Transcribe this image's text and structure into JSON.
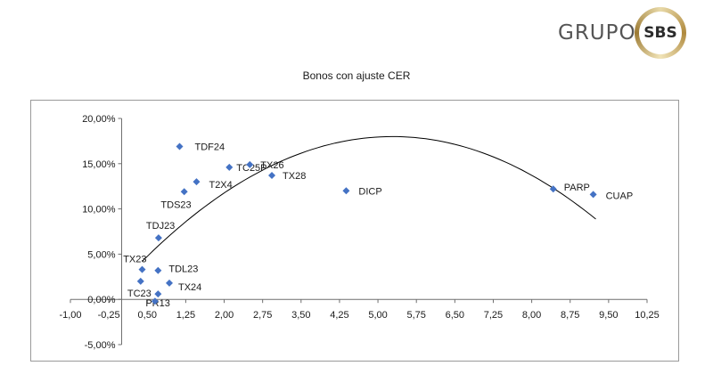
{
  "brand": {
    "text": "GRUPO",
    "badge": "SBS"
  },
  "chart_data": {
    "type": "scatter",
    "title": "Bonos con ajuste CER",
    "xlabel": "",
    "ylabel": "",
    "xlim": [
      -1.0,
      10.25
    ],
    "ylim": [
      -0.05,
      0.2
    ],
    "x_ticks": [
      "-1,00",
      "-0,25",
      "0,50",
      "1,25",
      "2,00",
      "2,75",
      "3,50",
      "4,25",
      "5,00",
      "5,75",
      "6,50",
      "7,25",
      "8,00",
      "8,75",
      "9,50",
      "10,25"
    ],
    "y_ticks": [
      "-5,00%",
      "0,00%",
      "5,00%",
      "10,00%",
      "15,00%",
      "20,00%"
    ],
    "grid": false,
    "legend": "none",
    "marker_color": "#4472c4",
    "trend_color": "#000000",
    "points": [
      {
        "label": "TDF24",
        "x": 1.13,
        "y": 0.169
      },
      {
        "label": "TC25P",
        "x": 2.1,
        "y": 0.146
      },
      {
        "label": "TX26",
        "x": 2.5,
        "y": 0.149
      },
      {
        "label": "TX28",
        "x": 2.93,
        "y": 0.137
      },
      {
        "label": "T2X4",
        "x": 1.46,
        "y": 0.13
      },
      {
        "label": "TDS23",
        "x": 1.22,
        "y": 0.119
      },
      {
        "label": "DICP",
        "x": 4.38,
        "y": 0.12
      },
      {
        "label": "PARP",
        "x": 8.42,
        "y": 0.122
      },
      {
        "label": "CUAP",
        "x": 9.2,
        "y": 0.116
      },
      {
        "label": "TDJ23",
        "x": 0.72,
        "y": 0.068
      },
      {
        "label": "TX23",
        "x": 0.4,
        "y": 0.033
      },
      {
        "label": "TDL23",
        "x": 0.71,
        "y": 0.032
      },
      {
        "label": "TC23",
        "x": 0.37,
        "y": 0.02
      },
      {
        "label": "TX24",
        "x": 0.93,
        "y": 0.018
      },
      {
        "label": "PR13",
        "x": 0.71,
        "y": 0.006
      },
      {
        "label": "",
        "x": 0.65,
        "y": -0.002
      }
    ],
    "trendline": {
      "type": "polynomial",
      "x_range": [
        0.4,
        9.25
      ],
      "coefficients": [
        0.01845,
        0.06116,
        -0.00579
      ]
    }
  }
}
